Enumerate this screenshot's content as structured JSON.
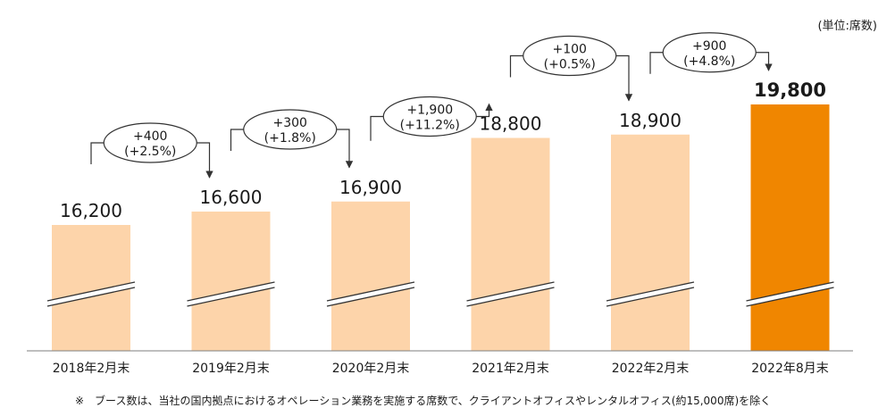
{
  "unit_label": "(単位:席数)",
  "footnote": "※　ブース数は、当社の国内拠点におけるオペレーション業務を実施する席数で、クライアントオフィスやレンタルオフィス(約15,000席)を除く",
  "colors": {
    "bar": "#FDD4AA",
    "highlight_bar": "#F08600",
    "axis": "#7f7f7f",
    "connector": "#333333"
  },
  "chart_data": {
    "type": "bar",
    "title": "",
    "xlabel": "",
    "ylabel": "",
    "axis_break": true,
    "categories": [
      "2018年2月末",
      "2019年2月末",
      "2020年2月末",
      "2021年2月末",
      "2022年2月末",
      "2022年8月末"
    ],
    "values": [
      16200,
      16600,
      16900,
      18800,
      18900,
      19800
    ],
    "value_labels": [
      "16,200",
      "16,600",
      "16,900",
      "18,800",
      "18,900",
      "19,800"
    ],
    "highlight_index": 5,
    "changes": [
      {
        "from": 0,
        "to": 1,
        "line1": "+400",
        "line2": "(+2.5%)"
      },
      {
        "from": 1,
        "to": 2,
        "line1": "+300",
        "line2": "(+1.8%)"
      },
      {
        "from": 2,
        "to": 3,
        "line1": "+1,900",
        "line2": "(+11.2%)"
      },
      {
        "from": 3,
        "to": 4,
        "line1": "+100",
        "line2": "(+0.5%)"
      },
      {
        "from": 4,
        "to": 5,
        "line1": "+900",
        "line2": "(+4.8%)"
      }
    ]
  }
}
